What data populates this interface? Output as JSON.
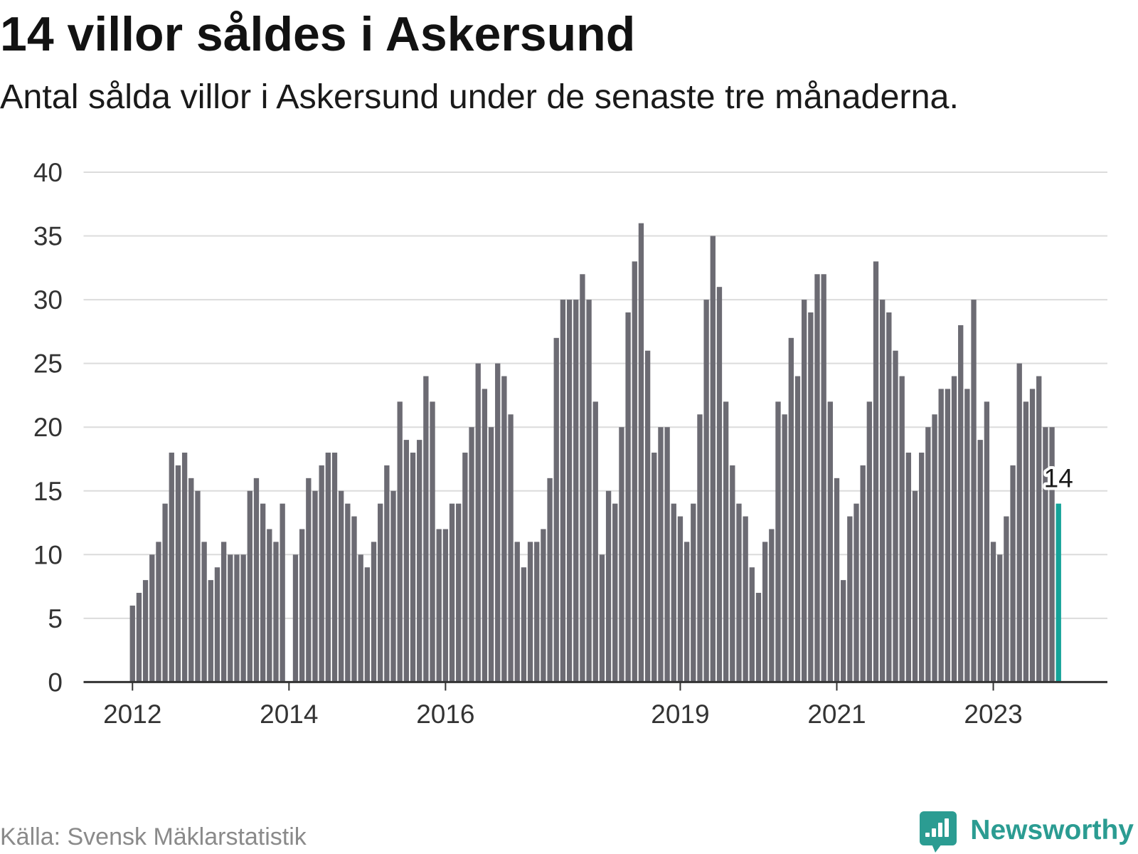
{
  "chart_data": {
    "type": "bar",
    "title": "14 villor såldes i Askersund",
    "subtitle": "Antal sålda villor i Askersund under de senaste tre månaderna.",
    "source": "Källa: Svensk Mäklarstatistik",
    "x": [
      "2012-01",
      "2012-02",
      "2012-03",
      "2012-04",
      "2012-05",
      "2012-06",
      "2012-07",
      "2012-08",
      "2012-09",
      "2012-10",
      "2012-11",
      "2012-12",
      "2013-01",
      "2013-02",
      "2013-03",
      "2013-04",
      "2013-05",
      "2013-06",
      "2013-07",
      "2013-08",
      "2013-09",
      "2013-10",
      "2013-11",
      "2013-12",
      "2014-01",
      "2014-02",
      "2014-03",
      "2014-04",
      "2014-05",
      "2014-06",
      "2014-07",
      "2014-08",
      "2014-09",
      "2014-10",
      "2014-11",
      "2014-12",
      "2015-01",
      "2015-02",
      "2015-03",
      "2015-04",
      "2015-05",
      "2015-06",
      "2015-07",
      "2015-08",
      "2015-09",
      "2015-10",
      "2015-11",
      "2015-12",
      "2016-01",
      "2016-02",
      "2016-03",
      "2016-04",
      "2016-05",
      "2016-06",
      "2016-07",
      "2016-08",
      "2016-09",
      "2016-10",
      "2016-11",
      "2016-12",
      "2017-01",
      "2017-02",
      "2017-03",
      "2017-04",
      "2017-05",
      "2017-06",
      "2017-07",
      "2017-08",
      "2017-09",
      "2017-10",
      "2017-11",
      "2017-12",
      "2018-01",
      "2018-02",
      "2018-03",
      "2018-04",
      "2018-05",
      "2018-06",
      "2018-07",
      "2018-08",
      "2018-09",
      "2018-10",
      "2018-11",
      "2018-12",
      "2019-01",
      "2019-02",
      "2019-03",
      "2019-04",
      "2019-05",
      "2019-06",
      "2019-07",
      "2019-08",
      "2019-09",
      "2019-10",
      "2019-11",
      "2019-12",
      "2020-01",
      "2020-02",
      "2020-03",
      "2020-04",
      "2020-05",
      "2020-06",
      "2020-07",
      "2020-08",
      "2020-09",
      "2020-10",
      "2020-11",
      "2020-12",
      "2021-01",
      "2021-02",
      "2021-03",
      "2021-04",
      "2021-05",
      "2021-06",
      "2021-07",
      "2021-08",
      "2021-09",
      "2021-10",
      "2021-11",
      "2021-12",
      "2022-01",
      "2022-02",
      "2022-03",
      "2022-04",
      "2022-05",
      "2022-06",
      "2022-07",
      "2022-08",
      "2022-09",
      "2022-10",
      "2022-11",
      "2022-12",
      "2023-01",
      "2023-02",
      "2023-03",
      "2023-04",
      "2023-05",
      "2023-06",
      "2023-07",
      "2023-08",
      "2023-09",
      "2023-10",
      "2023-11"
    ],
    "values": [
      6,
      7,
      8,
      10,
      11,
      14,
      18,
      17,
      18,
      16,
      15,
      11,
      8,
      9,
      11,
      10,
      10,
      10,
      15,
      16,
      14,
      12,
      11,
      14,
      null,
      10,
      12,
      16,
      15,
      17,
      18,
      18,
      15,
      14,
      13,
      10,
      9,
      11,
      14,
      17,
      15,
      22,
      19,
      18,
      19,
      24,
      22,
      12,
      12,
      14,
      14,
      18,
      20,
      25,
      23,
      20,
      25,
      24,
      21,
      11,
      9,
      11,
      11,
      12,
      16,
      27,
      30,
      30,
      30,
      32,
      30,
      22,
      10,
      15,
      14,
      20,
      29,
      33,
      36,
      26,
      18,
      20,
      20,
      14,
      13,
      11,
      14,
      21,
      30,
      35,
      31,
      22,
      17,
      14,
      13,
      9,
      7,
      11,
      12,
      22,
      21,
      27,
      24,
      30,
      29,
      32,
      32,
      22,
      16,
      8,
      13,
      14,
      17,
      22,
      33,
      30,
      29,
      26,
      24,
      18,
      15,
      18,
      20,
      21,
      23,
      23,
      24,
      28,
      23,
      30,
      19,
      22,
      11,
      10,
      13,
      17,
      25,
      22,
      23,
      24,
      20,
      20,
      14
    ],
    "xlim": [
      "2011-06",
      "2024-06"
    ],
    "ylim": [
      0,
      40
    ],
    "yticks": [
      0,
      5,
      10,
      15,
      20,
      25,
      30,
      35,
      40
    ],
    "xtick_labels": [
      "2012",
      "2014",
      "2016",
      "2019",
      "2021",
      "2023"
    ],
    "highlight": {
      "x": "2023-11",
      "label": "14"
    },
    "grid": true
  },
  "brand": {
    "name": "Newsworthy",
    "icon": "newsworthy-logo-icon"
  },
  "colors": {
    "bar": "#6c6b73",
    "highlight": "#15a399",
    "grid": "#dcdcdc",
    "axis": "#333333",
    "brand": "#2b9c92"
  }
}
